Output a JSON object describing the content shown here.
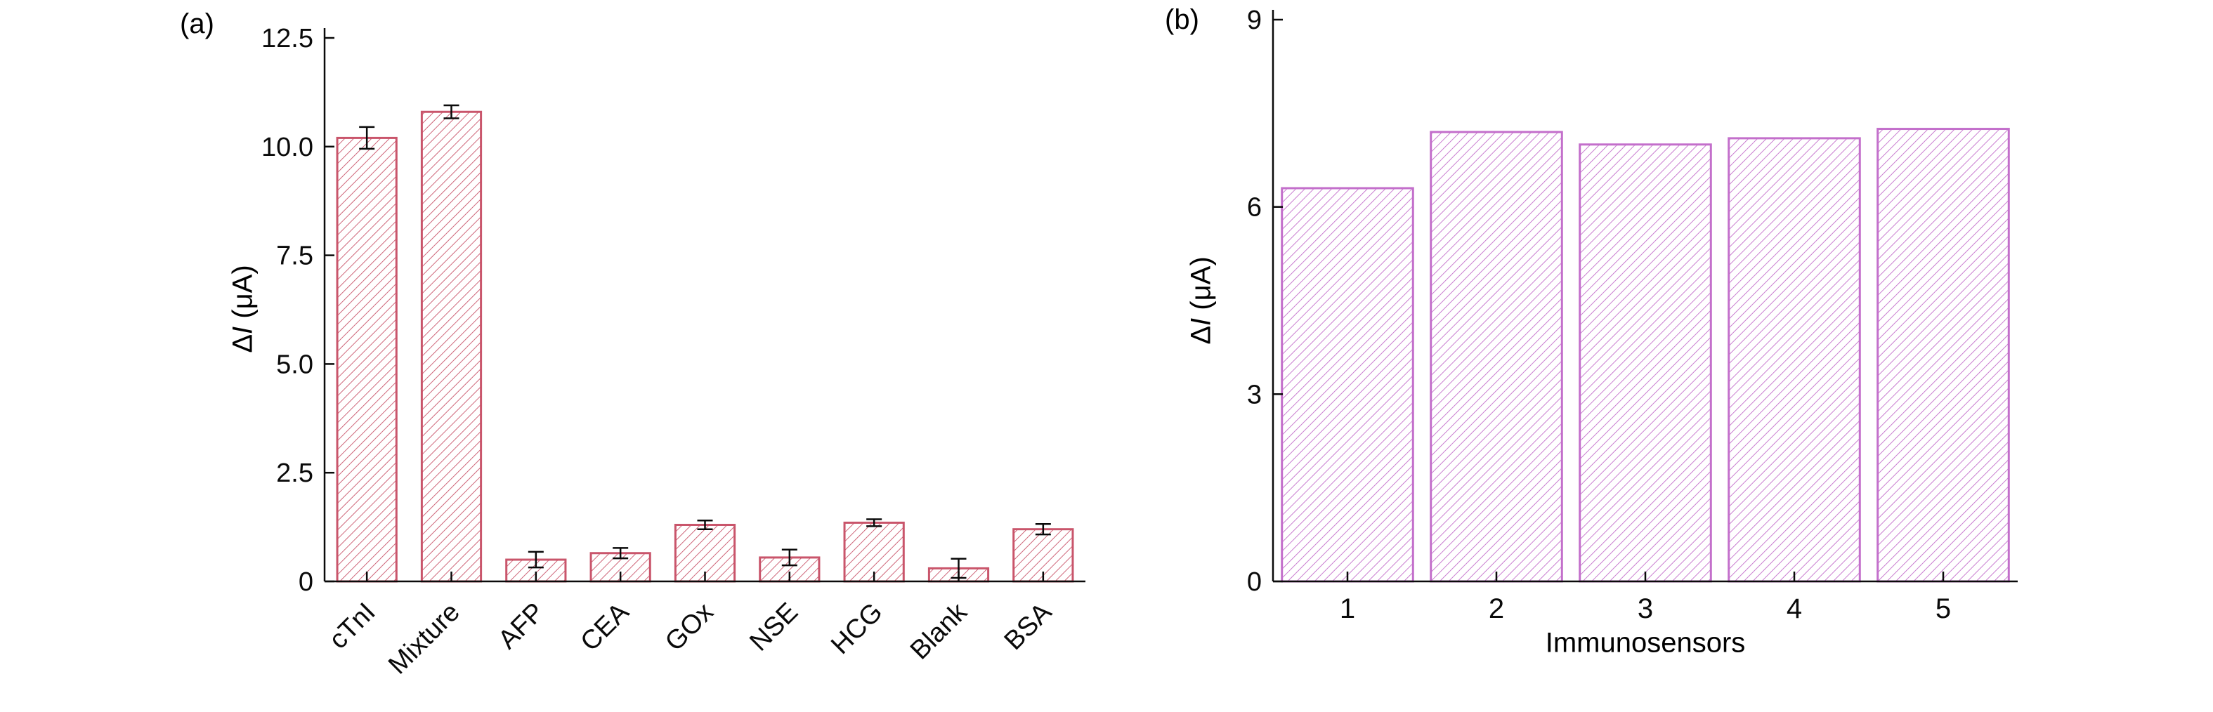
{
  "figure": {
    "background": "#ffffff",
    "axis_color": "#0a0a0a",
    "text_color": "#0a0a0a"
  },
  "chart_data": [
    {
      "type": "bar",
      "panel": "(a)",
      "title": "",
      "xlabel": "",
      "ylabel": "ΔI (μA)",
      "categories": [
        "cTnI",
        "Mixture",
        "AFP",
        "CEA",
        "GOx",
        "NSE",
        "HCG",
        "Blank",
        "BSA"
      ],
      "values": [
        10.2,
        10.8,
        0.5,
        0.65,
        1.3,
        0.55,
        1.35,
        0.3,
        1.2
      ],
      "errors": [
        0.25,
        0.15,
        0.18,
        0.12,
        0.1,
        0.18,
        0.08,
        0.22,
        0.12
      ],
      "ylim": [
        0,
        12.5
      ],
      "yticks": [
        0,
        2.5,
        5.0,
        7.5,
        10.0,
        12.5
      ],
      "ytick_labels": [
        "0",
        "2.5",
        "5.0",
        "7.5",
        "10.0",
        "12.5"
      ],
      "bar_color": "#c9556b",
      "hatch": "diagonal-forward",
      "error_bar_color": "#0a0a0a",
      "rotated_x_labels": true,
      "grid": false,
      "legend": false
    },
    {
      "type": "bar",
      "panel": "(b)",
      "title": "",
      "xlabel": "Immunosensors",
      "ylabel": "ΔI (μA)",
      "categories": [
        "1",
        "2",
        "3",
        "4",
        "5"
      ],
      "values": [
        6.3,
        7.2,
        7.0,
        7.1,
        7.25
      ],
      "errors": null,
      "ylim": [
        0,
        9
      ],
      "yticks": [
        0,
        3,
        6,
        9
      ],
      "ytick_labels": [
        "0",
        "3",
        "6",
        "9"
      ],
      "bar_color": "#c36fcb",
      "hatch": "diagonal-forward",
      "error_bar_color": "#0a0a0a",
      "rotated_x_labels": false,
      "grid": false,
      "legend": false
    }
  ]
}
